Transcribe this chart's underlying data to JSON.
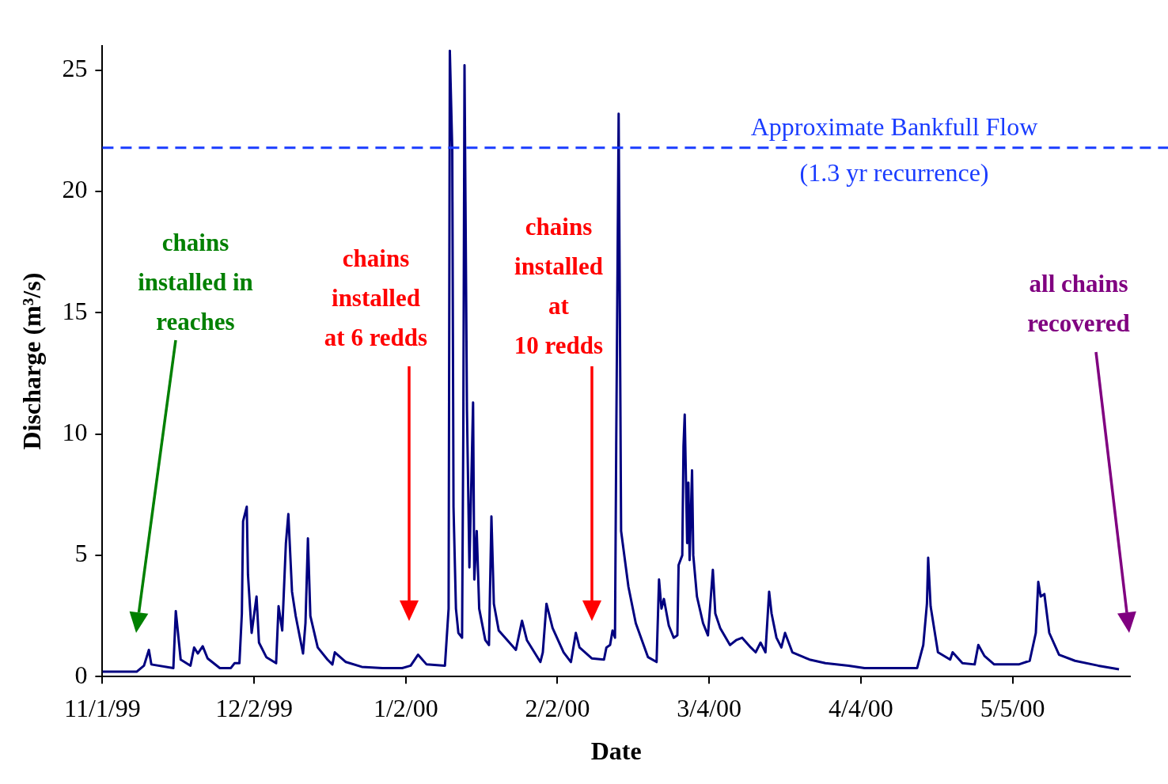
{
  "chart_data": {
    "type": "line",
    "xlabel": "Date",
    "ylabel": "Discharge (m³/s)",
    "xlim": [
      "1999-11-01",
      "2000-05-29"
    ],
    "xticks": [
      {
        "value": "1999-11-01",
        "label": "11/1/99"
      },
      {
        "value": "1999-12-02",
        "label": "12/2/99"
      },
      {
        "value": "2000-01-02",
        "label": "1/2/00"
      },
      {
        "value": "2000-02-02",
        "label": "2/2/00"
      },
      {
        "value": "2000-03-04",
        "label": "3/4/00"
      },
      {
        "value": "2000-04-04",
        "label": "4/4/00"
      },
      {
        "value": "2000-05-05",
        "label": "5/5/00"
      }
    ],
    "ylim": [
      0,
      26
    ],
    "yticks": [
      0,
      5,
      10,
      15,
      20,
      25
    ],
    "grid": false,
    "legend": false,
    "marker": "none",
    "line_style": "solid",
    "series": [
      {
        "color": "#000080",
        "x": [
          "1999-11-01",
          "1999-11-08",
          "1999-11-09T12:00",
          "1999-11-10T12:00",
          "1999-11-11",
          "1999-11-15T12:00",
          "1999-11-16",
          "1999-11-17",
          "1999-11-19",
          "1999-11-19T18:00",
          "1999-11-20T12:00",
          "1999-11-21T12:00",
          "1999-11-22T12:00",
          "1999-11-25",
          "1999-11-27T06:00",
          "1999-11-28",
          "1999-11-29",
          "1999-11-29T12:00",
          "1999-11-29T18:00",
          "1999-11-30T12:00",
          "1999-11-30T18:00",
          "1999-12-01T12:00",
          "1999-12-02T12:00",
          "1999-12-03",
          "1999-12-04T12:00",
          "1999-12-06T12:00",
          "1999-12-07",
          "1999-12-07T18:00",
          "1999-12-08T12:00",
          "1999-12-09",
          "1999-12-09T18:00",
          "1999-12-10T12:00",
          "1999-12-12",
          "1999-12-12T12:00",
          "1999-12-13",
          "1999-12-13T12:00",
          "1999-12-15",
          "1999-12-17",
          "1999-12-18",
          "1999-12-18T12:00",
          "1999-12-20T18:00",
          "1999-12-24",
          "1999-12-28T06:00",
          "2000-01-01T06:00",
          "2000-01-03",
          "2000-01-04T12:00",
          "2000-01-06T06:00",
          "2000-01-10",
          "2000-01-10T18:00",
          "2000-01-11",
          "2000-01-11T12:00",
          "2000-01-11T18:00",
          "2000-01-12T06:00",
          "2000-01-12T18:00",
          "2000-01-13T12:00",
          "2000-01-13T18:00",
          "2000-01-14",
          "2000-01-14T12:00",
          "2000-01-15",
          "2000-01-15T18:00",
          "2000-01-16",
          "2000-01-16T12:00",
          "2000-01-17",
          "2000-01-18T06:00",
          "2000-01-19",
          "2000-01-19T12:00",
          "2000-01-20",
          "2000-01-21",
          "2000-01-24T12:00",
          "2000-01-25T18:00",
          "2000-01-26T18:00",
          "2000-01-29T12:00",
          "2000-01-30",
          "2000-01-30T18:00",
          "2000-02-01",
          "2000-02-03T06:00",
          "2000-02-04T18:00",
          "2000-02-05T18:00",
          "2000-02-06T12:00",
          "2000-02-09",
          "2000-02-11T12:00",
          "2000-02-12",
          "2000-02-12T18:00",
          "2000-02-13T06:00",
          "2000-02-13T18:00",
          "2000-02-14",
          "2000-02-14T12:00",
          "2000-02-14T18:00",
          "2000-02-15",
          "2000-02-16T12:00",
          "2000-02-18",
          "2000-02-20T12:00",
          "2000-02-22T06:00",
          "2000-02-22T18:00",
          "2000-02-23T06:00",
          "2000-02-23T18:00",
          "2000-02-24T18:00",
          "2000-02-25T18:00",
          "2000-02-26T12:00",
          "2000-02-26T18:00",
          "2000-02-27T12:00",
          "2000-02-27T18:00",
          "2000-02-28",
          "2000-02-28T12:00",
          "2000-02-28T18:00",
          "2000-02-29",
          "2000-02-29T12:00",
          "2000-02-29T18:00",
          "2000-03-01T12:00",
          "2000-03-02T18:00",
          "2000-03-03T18:00",
          "2000-03-04T18:00",
          "2000-03-05T06:00",
          "2000-03-06T06:00",
          "2000-03-08T06:00",
          "2000-03-09T12:00",
          "2000-03-10T18:00",
          "2000-03-12T12:00",
          "2000-03-13T12:00",
          "2000-03-14T12:00",
          "2000-03-15T12:00",
          "2000-03-16T06:00",
          "2000-03-16T18:00",
          "2000-03-17T18:00",
          "2000-03-18T18:00",
          "2000-03-19T12:00",
          "2000-03-21",
          "2000-03-24T12:00",
          "2000-03-27T18:00",
          "2000-04-01T12:00",
          "2000-04-04T18:00",
          "2000-04-15T12:00",
          "2000-04-16T18:00",
          "2000-04-17T12:00",
          "2000-04-17T18:00",
          "2000-04-18T06:00",
          "2000-04-19T18:00",
          "2000-04-22T06:00",
          "2000-04-22T18:00",
          "2000-04-24T18:00",
          "2000-04-27T06:00",
          "2000-04-28",
          "2000-04-29T06:00",
          "2000-05-01T06:00",
          "2000-05-06T06:00",
          "2000-05-08T12:00",
          "2000-05-09T18:00",
          "2000-05-10T06:00",
          "2000-05-10T18:00",
          "2000-05-11T12:00",
          "2000-05-12T12:00",
          "2000-05-14T12:00",
          "2000-05-17T18:00",
          "2000-05-22T12:00",
          "2000-05-26T18:00"
        ],
        "values": [
          0.2,
          0.2,
          0.45,
          1.1,
          0.5,
          0.35,
          2.7,
          0.7,
          0.45,
          1.2,
          0.95,
          1.25,
          0.75,
          0.35,
          0.35,
          0.55,
          0.55,
          2.6,
          6.4,
          7.0,
          4.2,
          1.8,
          3.3,
          1.4,
          0.8,
          0.55,
          2.9,
          1.9,
          5.5,
          6.7,
          3.5,
          2.5,
          0.95,
          2.2,
          5.7,
          2.5,
          1.2,
          0.7,
          0.5,
          1.0,
          0.6,
          0.4,
          0.35,
          0.35,
          0.45,
          0.9,
          0.5,
          0.45,
          2.8,
          25.8,
          21.7,
          7.0,
          2.8,
          1.8,
          1.6,
          10,
          25.2,
          11,
          4.5,
          11.3,
          4.0,
          6.0,
          2.8,
          1.5,
          1.3,
          6.6,
          3.0,
          1.9,
          1.1,
          2.3,
          1.5,
          0.6,
          1.0,
          3.0,
          2.0,
          1.0,
          0.6,
          1.8,
          1.2,
          0.75,
          0.7,
          1.2,
          1.3,
          1.9,
          1.6,
          9.5,
          23.2,
          15,
          6,
          3.7,
          2.2,
          0.8,
          0.6,
          4.0,
          2.8,
          3.2,
          2.1,
          1.6,
          1.7,
          4.6,
          5.0,
          9.5,
          10.8,
          5.5,
          8.0,
          4.8,
          8.5,
          5.0,
          3.3,
          2.2,
          1.7,
          4.4,
          2.6,
          2.0,
          1.3,
          1.5,
          1.6,
          1.2,
          1.0,
          1.4,
          1.0,
          3.5,
          2.6,
          1.6,
          1.2,
          1.8,
          1.0,
          0.7,
          0.55,
          0.45,
          0.35,
          0.35,
          1.3,
          3.0,
          4.9,
          2.9,
          1.0,
          0.7,
          1.0,
          0.55,
          0.5,
          1.3,
          0.85,
          0.5,
          0.5,
          0.65,
          1.8,
          3.9,
          3.3,
          3.4,
          1.8,
          0.9,
          0.65,
          0.45,
          0.3
        ]
      }
    ],
    "ref_lines": [
      {
        "axis": "y",
        "value": 21.8,
        "label": "Approximate Bankfull Flow\n(1.3 yr recurrence)",
        "color": "#1a3cff",
        "line_style": "dashed"
      }
    ],
    "annotations": [
      "chains\ninstalled in\nreaches",
      "chains\ninstalled\nat 6 redds",
      "chains\ninstalled\nat\n10 redds",
      "all chains\nrecovered"
    ]
  }
}
